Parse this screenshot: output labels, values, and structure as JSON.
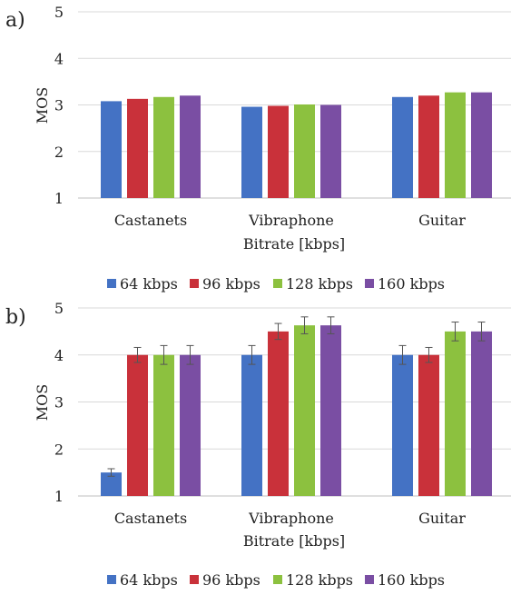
{
  "chart_data": [
    {
      "panel_label": "a)",
      "type": "bar",
      "categories": [
        "Castanets",
        "Vibraphone",
        "Guitar"
      ],
      "series": [
        {
          "name": "64 kbps",
          "color": "#4472c4",
          "values": [
            3.08,
            2.96,
            3.17
          ]
        },
        {
          "name": "96 kbps",
          "color": "#c9313a",
          "values": [
            3.13,
            2.98,
            3.2
          ]
        },
        {
          "name": "128 kbps",
          "color": "#8cc13f",
          "values": [
            3.17,
            3.01,
            3.27
          ]
        },
        {
          "name": "160 kbps",
          "color": "#7a4ea3",
          "values": [
            3.2,
            3.0,
            3.27
          ]
        }
      ],
      "error_bars": false,
      "xlabel": "Bitrate [kbps]",
      "ylabel": "MOS",
      "ylim": [
        1,
        5
      ],
      "yticks": [
        "1",
        "2",
        "3",
        "4",
        "5"
      ],
      "grid": true,
      "legend": "bottom"
    },
    {
      "panel_label": "b)",
      "type": "bar",
      "categories": [
        "Castanets",
        "Vibraphone",
        "Guitar"
      ],
      "series": [
        {
          "name": "64 kbps",
          "color": "#4472c4",
          "values": [
            1.5,
            4.0,
            4.0
          ],
          "errors": [
            0.08,
            0.2,
            0.2
          ]
        },
        {
          "name": "96 kbps",
          "color": "#c9313a",
          "values": [
            4.0,
            4.5,
            4.0
          ],
          "errors": [
            0.16,
            0.17,
            0.16
          ]
        },
        {
          "name": "128 kbps",
          "color": "#8cc13f",
          "values": [
            4.0,
            4.63,
            4.5
          ],
          "errors": [
            0.2,
            0.18,
            0.2
          ]
        },
        {
          "name": "160 kbps",
          "color": "#7a4ea3",
          "values": [
            4.0,
            4.63,
            4.5
          ],
          "errors": [
            0.2,
            0.18,
            0.2
          ]
        }
      ],
      "error_bars": true,
      "xlabel": "Bitrate [kbps]",
      "ylabel": "MOS",
      "ylim": [
        1,
        5
      ],
      "yticks": [
        "1",
        "2",
        "3",
        "4",
        "5"
      ],
      "grid": true,
      "legend": "bottom"
    }
  ]
}
